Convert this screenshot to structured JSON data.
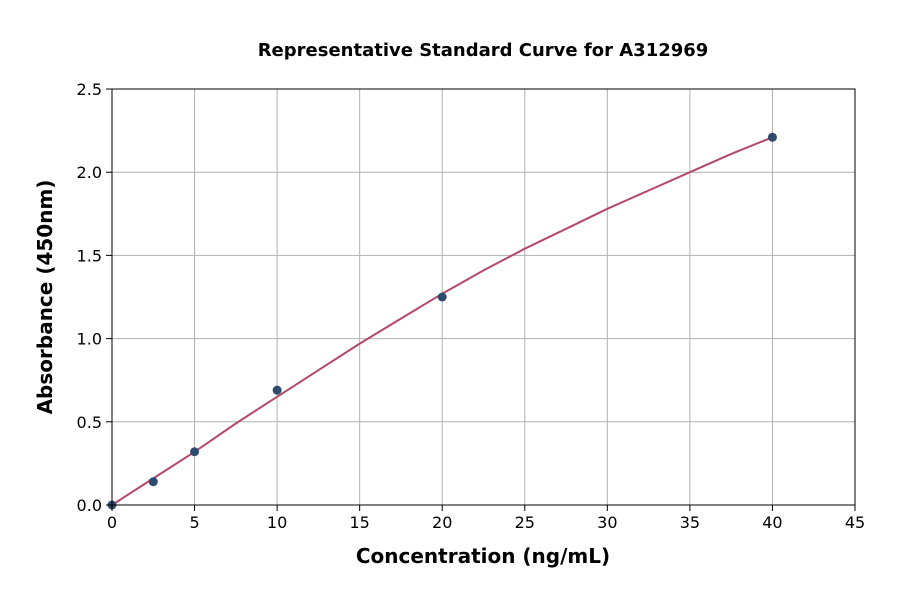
{
  "chart_data": {
    "type": "scatter",
    "title": "Representative Standard Curve for A312969",
    "xlabel": "Concentration (ng/mL)",
    "ylabel": "Absorbance (450nm)",
    "xlim": [
      0,
      45
    ],
    "ylim": [
      0,
      2.5
    ],
    "x_ticks": [
      0,
      5,
      10,
      15,
      20,
      25,
      30,
      35,
      40,
      45
    ],
    "y_ticks": [
      0.0,
      0.5,
      1.0,
      1.5,
      2.0,
      2.5
    ],
    "x_tick_labels": [
      "0",
      "5",
      "10",
      "15",
      "20",
      "25",
      "30",
      "35",
      "40",
      "45"
    ],
    "y_tick_labels": [
      "0.0",
      "0.5",
      "1.0",
      "1.5",
      "2.0",
      "2.5"
    ],
    "grid": true,
    "series": [
      {
        "type": "scatter",
        "x": [
          0,
          2.5,
          5,
          10,
          20,
          40
        ],
        "y": [
          0.0,
          0.14,
          0.32,
          0.69,
          1.25,
          2.21
        ]
      },
      {
        "type": "line",
        "x": [
          0,
          2.5,
          5,
          7.5,
          10,
          12.5,
          15,
          17.5,
          20,
          22.5,
          25,
          27.5,
          30,
          32.5,
          35,
          37.5,
          40
        ],
        "y": [
          0.0,
          0.16,
          0.32,
          0.49,
          0.65,
          0.81,
          0.97,
          1.12,
          1.27,
          1.41,
          1.54,
          1.66,
          1.78,
          1.89,
          2.0,
          2.11,
          2.21
        ]
      }
    ],
    "colors": {
      "points": "#2e4a6e",
      "curve": "#b5476b",
      "grid": "#b0b0b0",
      "axes": "#000000"
    }
  }
}
